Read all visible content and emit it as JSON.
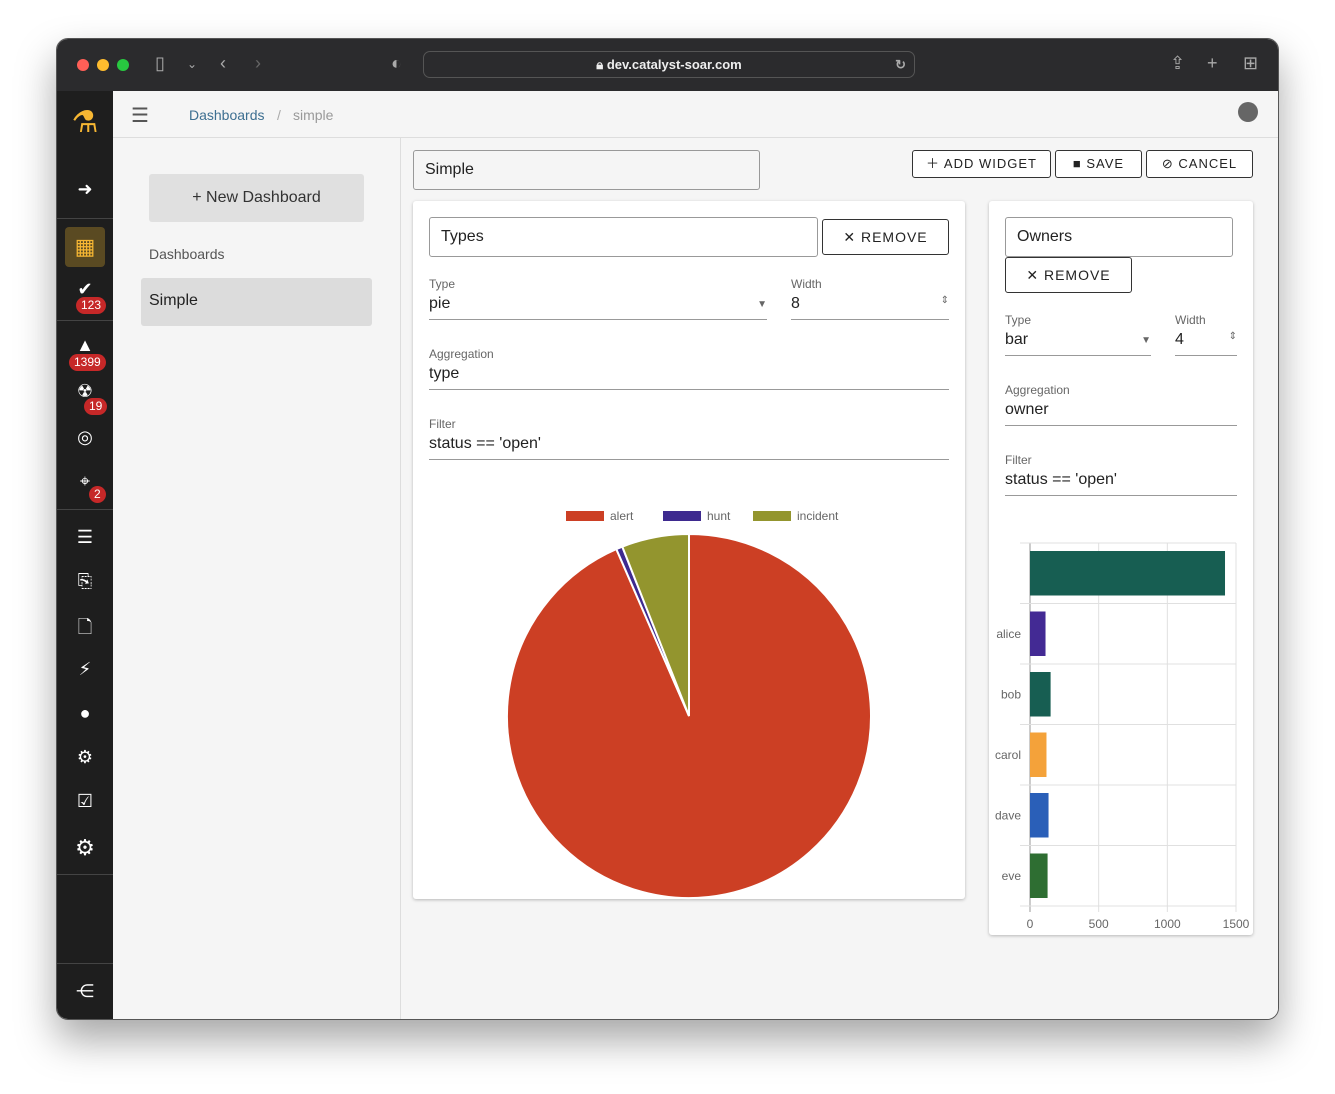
{
  "browser": {
    "url": "dev.catalyst-soar.com"
  },
  "sidebar": {
    "badges": {
      "tasks": "123",
      "alerts": "1399",
      "incidents": "19",
      "targets": "2"
    }
  },
  "appbar": {
    "breadcrumb": [
      "Dashboards",
      "simple"
    ]
  },
  "left": {
    "new_button": "+ New Dashboard",
    "section": "Dashboards",
    "items": [
      "Simple"
    ]
  },
  "toolbar": {
    "title_value": "Simple",
    "add_widget": "ADD WIDGET",
    "save": "SAVE",
    "cancel": "CANCEL"
  },
  "widgets": [
    {
      "name": "Types",
      "remove": "REMOVE",
      "type_label": "Type",
      "type": "pie",
      "width_label": "Width",
      "width": "8",
      "agg_label": "Aggregation",
      "aggregation": "type",
      "filter_label": "Filter",
      "filter": "status == 'open'"
    },
    {
      "name": "Owners",
      "remove": "REMOVE",
      "type_label": "Type",
      "type": "bar",
      "width_label": "Width",
      "width": "4",
      "agg_label": "Aggregation",
      "aggregation": "owner",
      "filter_label": "Filter",
      "filter": "status == 'open'"
    }
  ],
  "chart_data": [
    {
      "type": "pie",
      "categories": [
        "alert",
        "hunt",
        "incident"
      ],
      "values": [
        1330,
        8,
        85
      ],
      "colors": [
        "#cc3f24",
        "#3e2a8f",
        "#93952e"
      ],
      "legend": "top"
    },
    {
      "type": "bar",
      "orientation": "horizontal",
      "categories": [
        "",
        "alice",
        "bob",
        "carol",
        "dave",
        "eve"
      ],
      "values": [
        1420,
        113,
        150,
        120,
        135,
        128
      ],
      "colors": [
        "#175e52",
        "#432a94",
        "#175e52",
        "#f4a23a",
        "#2a5fb8",
        "#2e6e32"
      ],
      "xlim": [
        0,
        1500
      ],
      "xticks": [
        "0",
        "500",
        "1000",
        "1500"
      ],
      "grid": true
    }
  ]
}
